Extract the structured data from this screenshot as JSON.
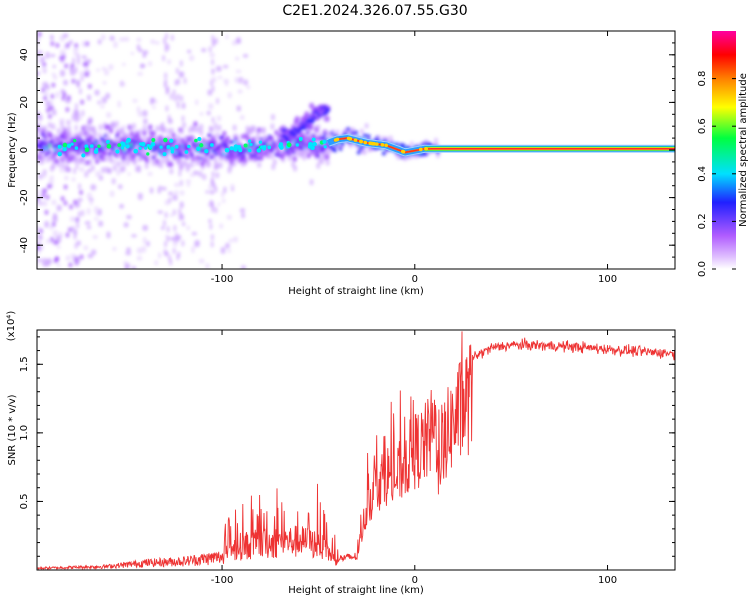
{
  "figure_title": "C2E1.2024.326.07.55.G30",
  "chart_data": [
    {
      "type": "heatmap",
      "xlabel": "Height of straight line (km)",
      "ylabel": "Frequency (Hz)",
      "xlim": [
        -196,
        135
      ],
      "ylim": [
        -50,
        50
      ],
      "x_ticks": [
        -100,
        0,
        100
      ],
      "x_tick_labels": [
        "-100",
        "0",
        "100"
      ],
      "y_ticks": [
        -40,
        -20,
        0,
        20,
        40
      ],
      "y_tick_labels": [
        "-40",
        "-20",
        "0",
        "20",
        "40"
      ],
      "colorbar": {
        "label": "Normalized spectral amplitude",
        "range": [
          0,
          1
        ],
        "ticks": [
          0.0,
          0.2,
          0.4,
          0.6,
          0.8
        ],
        "tick_labels": [
          "0.0",
          "0.2",
          "0.4",
          "0.6",
          "0.8"
        ],
        "colors": [
          "#ffffff",
          "#b05cff",
          "#2020ff",
          "#00e0ff",
          "#00ff40",
          "#ffff00",
          "#ff8000",
          "#ff0000",
          "#ff00a0"
        ]
      },
      "ridge_center_hz": [
        {
          "x": -190,
          "y": 1.0
        },
        {
          "x": -160,
          "y": 2.0
        },
        {
          "x": -130,
          "y": 1.0
        },
        {
          "x": -100,
          "y": 0.5
        },
        {
          "x": -75,
          "y": 1.5
        },
        {
          "x": -60,
          "y": 2.0
        },
        {
          "x": -50,
          "y": 2.5
        },
        {
          "x": -45,
          "y": 3.0
        },
        {
          "x": -40,
          "y": 4.5
        },
        {
          "x": -35,
          "y": 5.0
        },
        {
          "x": -25,
          "y": 3.0
        },
        {
          "x": -15,
          "y": 2.0
        },
        {
          "x": -5,
          "y": -1.0
        },
        {
          "x": 5,
          "y": 0.5
        },
        {
          "x": 20,
          "y": 0.5
        },
        {
          "x": 135,
          "y": 0.5
        }
      ],
      "branch_hz": [
        {
          "x": -65,
          "y": 6
        },
        {
          "x": -55,
          "y": 12
        },
        {
          "x": -48,
          "y": 17
        }
      ],
      "grid": false
    },
    {
      "type": "line",
      "xlabel": "Height of straight line (km)",
      "ylabel": "SNR (10 * v/v)",
      "y_scale_label": "(x10⁴)",
      "xlim": [
        -196,
        135
      ],
      "ylim": [
        0,
        1.75
      ],
      "x_ticks": [
        -100,
        0,
        100
      ],
      "x_tick_labels": [
        "-100",
        "0",
        "100"
      ],
      "y_ticks": [
        0.5,
        1.0,
        1.5
      ],
      "y_tick_labels": [
        "0.5",
        "1.0",
        "1.5"
      ],
      "color": "#ee3333",
      "series_envelope": [
        {
          "x": -196,
          "y": 0.02
        },
        {
          "x": -160,
          "y": 0.04
        },
        {
          "x": -140,
          "y": 0.08
        },
        {
          "x": -120,
          "y": 0.1
        },
        {
          "x": -100,
          "y": 0.15
        },
        {
          "x": -90,
          "y": 0.28
        },
        {
          "x": -80,
          "y": 0.3
        },
        {
          "x": -70,
          "y": 0.32
        },
        {
          "x": -60,
          "y": 0.33
        },
        {
          "x": -50,
          "y": 0.3
        },
        {
          "x": -40,
          "y": 0.1
        },
        {
          "x": -30,
          "y": 0.12
        },
        {
          "x": -25,
          "y": 0.55
        },
        {
          "x": -20,
          "y": 0.75
        },
        {
          "x": -15,
          "y": 0.85
        },
        {
          "x": -10,
          "y": 0.8
        },
        {
          "x": -5,
          "y": 0.95
        },
        {
          "x": 0,
          "y": 1.05
        },
        {
          "x": 5,
          "y": 1.1
        },
        {
          "x": 10,
          "y": 1.25
        },
        {
          "x": 15,
          "y": 1.15
        },
        {
          "x": 20,
          "y": 1.3
        },
        {
          "x": 25,
          "y": 1.45
        },
        {
          "x": 30,
          "y": 1.55
        },
        {
          "x": 40,
          "y": 1.62
        },
        {
          "x": 50,
          "y": 1.64
        },
        {
          "x": 60,
          "y": 1.64
        },
        {
          "x": 80,
          "y": 1.63
        },
        {
          "x": 100,
          "y": 1.61
        },
        {
          "x": 120,
          "y": 1.59
        },
        {
          "x": 135,
          "y": 1.58
        }
      ],
      "grid": false
    }
  ]
}
